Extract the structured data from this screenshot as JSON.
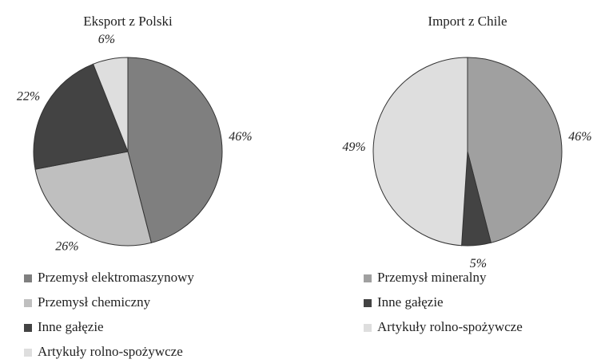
{
  "chart_data": [
    {
      "type": "pie",
      "title": "Eksport z Polski",
      "categories": [
        "Przemysł elektromaszynowy",
        "Przemysł chemiczny",
        "Inne gałęzie",
        "Artykuły rolno-spożywcze"
      ],
      "values": [
        46,
        26,
        22,
        6
      ],
      "value_labels": [
        "46%",
        "26%",
        "22%",
        "6%"
      ],
      "colors": [
        "#7f7f7f",
        "#bfbfbf",
        "#434343",
        "#dedede"
      ]
    },
    {
      "type": "pie",
      "title": "Import z Chile",
      "categories": [
        "Przemysł mineralny",
        "Inne gałęzie",
        "Artykuły rolno-spożywcze"
      ],
      "values": [
        46,
        5,
        49
      ],
      "value_labels": [
        "46%",
        "5%",
        "49%"
      ],
      "colors": [
        "#a0a0a0",
        "#434343",
        "#dedede"
      ]
    }
  ]
}
